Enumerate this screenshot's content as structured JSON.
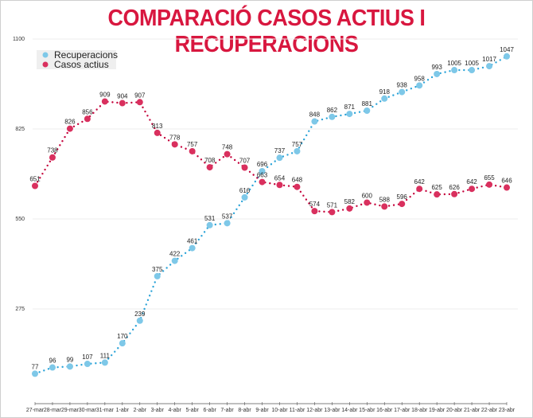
{
  "chart_data": {
    "type": "line",
    "title": "COMPARACIÓ CASOS ACTIUS I RECUPERACIONS",
    "categories": [
      "27-mar",
      "28-mar",
      "29-mar",
      "30-mar",
      "31-mar",
      "1-abr",
      "2-abr",
      "3-abr",
      "4-abr",
      "5-abr",
      "6-abr",
      "7-abr",
      "8-abr",
      "9-abr",
      "10-abr",
      "11-abr",
      "12-abr",
      "13-abr",
      "14-abr",
      "15-abr",
      "16-abr",
      "17-abr",
      "18-abr",
      "19-abr",
      "20-abr",
      "21-abr",
      "22-abr",
      "23-abr"
    ],
    "series": [
      {
        "name": "Recuperacions",
        "color": "#7ec8e8",
        "values": [
          77,
          96,
          99,
          107,
          111,
          170,
          239,
          375,
          422,
          461,
          531,
          537,
          616,
          696,
          737,
          757,
          848,
          862,
          871,
          881,
          918,
          938,
          958,
          993,
          1005,
          1005,
          1017,
          1047
        ]
      },
      {
        "name": "Casos actius",
        "color": "#d9305e",
        "values": [
          651,
          738,
          826,
          856,
          909,
          904,
          907,
          813,
          778,
          757,
          708,
          748,
          707,
          663,
          654,
          648,
          574,
          571,
          582,
          600,
          588,
          596,
          642,
          625,
          626,
          642,
          655,
          646
        ]
      }
    ],
    "yticks": [
      "275",
      "550",
      "825",
      "1100"
    ],
    "ylim": [
      0,
      1100
    ],
    "grid": true,
    "legend": "top-left"
  }
}
